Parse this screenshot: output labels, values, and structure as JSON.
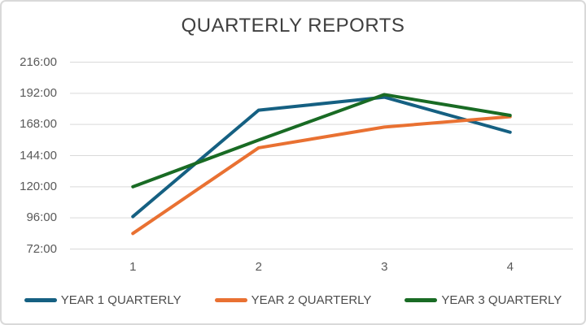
{
  "card": {
    "title": "QUARTERLY REPORTS"
  },
  "chart_data": {
    "type": "line",
    "title": "QUARTERLY REPORTS",
    "categories": [
      "1",
      "2",
      "3",
      "4"
    ],
    "series": [
      {
        "name": "YEAR 1 QUARTERLY",
        "color": "#156082",
        "values": [
          97,
          179,
          189,
          162
        ]
      },
      {
        "name": "YEAR 2 QUARTERLY",
        "color": "#E97132",
        "values": [
          84,
          150,
          166,
          174
        ]
      },
      {
        "name": "YEAR 3 QUARTERLY",
        "color": "#196B24",
        "values": [
          120,
          156,
          191,
          175
        ]
      }
    ],
    "y_ticks": [
      "72:00",
      "96:00",
      "120:00",
      "144:00",
      "168:00",
      "192:00",
      "216:00"
    ],
    "ylim": [
      72,
      216
    ],
    "y_step": 24,
    "value_format": "hours h:mm",
    "xlabel": "",
    "ylabel": "",
    "grid": true,
    "legend_position": "bottom"
  },
  "theme": {
    "background": "#FFFFFF",
    "border_color": "#D9D9D9",
    "grid_color": "#D9D9D9",
    "title_color": "#3F3F3F",
    "axis_text_color": "#595959",
    "legend_text_color": "#4D4D4D"
  }
}
